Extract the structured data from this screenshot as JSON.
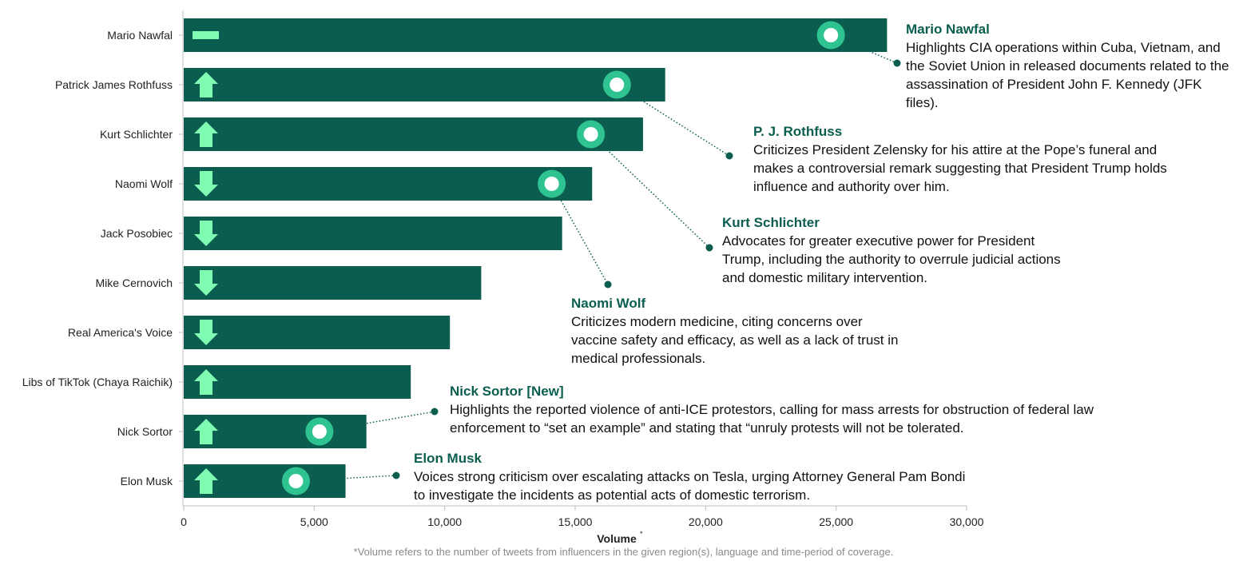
{
  "chart_data": {
    "type": "bar",
    "orientation": "horizontal",
    "categories": [
      "Mario Nawfal",
      "Patrick James Rothfuss",
      "Kurt Schlichter",
      "Naomi Wolf",
      "Jack Posobiec",
      "Mike Cernovich",
      "Real America's Voice",
      "Libs of TikTok (Chaya Raichik)",
      "Nick Sortor",
      "Elon Musk"
    ],
    "values": [
      26950,
      18450,
      17600,
      15650,
      14500,
      11400,
      10200,
      8700,
      7000,
      6200
    ],
    "trend": [
      "flat",
      "up",
      "up",
      "down",
      "down",
      "down",
      "down",
      "up",
      "up",
      "up"
    ],
    "xlim": [
      0,
      30000
    ],
    "xticks": [
      "0",
      "5,000",
      "10,000",
      "15,000",
      "20,000",
      "25,000",
      "30,000"
    ],
    "xtick_values": [
      0,
      5000,
      10000,
      15000,
      20000,
      25000,
      30000
    ],
    "xlabel": "Volume",
    "xlabel_mark": "*",
    "bar_color": "#0b5e4f",
    "trend_color": "#7ffcb2",
    "annotations": [
      {
        "category": "Mario Nawfal",
        "marker_value": 24800,
        "title": "Mario Nawfal",
        "text": "Highlights CIA operations within Cuba, Vietnam, and the Soviet Union in released documents related to the assassination of President John F. Kennedy (JFK files)."
      },
      {
        "category": "Patrick James Rothfuss",
        "marker_value": 16600,
        "title": "P. J. Rothfuss",
        "text": "Criticizes President Zelensky for his attire at the Pope’s funeral and makes a controversial remark suggesting that President Trump holds influence and authority over him."
      },
      {
        "category": "Kurt Schlichter",
        "marker_value": 15600,
        "title": "Kurt Schlichter",
        "text": "Advocates for greater executive power for President Trump, including the authority to overrule judicial actions and domestic military intervention."
      },
      {
        "category": "Naomi Wolf",
        "marker_value": 14100,
        "title": "Naomi Wolf",
        "text": "Criticizes modern medicine, citing concerns over vaccine safety and efficacy, as well as a lack of trust in medical professionals."
      },
      {
        "category": "Nick Sortor",
        "marker_value": 5200,
        "title": "Nick Sortor [New]",
        "text": "Highlights the reported violence of anti-ICE protestors, calling for mass arrests for obstruction of federal law enforcement to “set an example” and stating that “unruly protests will not be tolerated."
      },
      {
        "category": "Elon Musk",
        "marker_value": 4300,
        "title": "Elon Musk",
        "text": "Voices strong criticism over escalating attacks on Tesla, urging Attorney General Pam Bondi to investigate the incidents as potential acts of domestic terrorism."
      }
    ],
    "footnote": "*Volume refers to the number of tweets from influencers in the given region(s), language and time-period of coverage."
  }
}
